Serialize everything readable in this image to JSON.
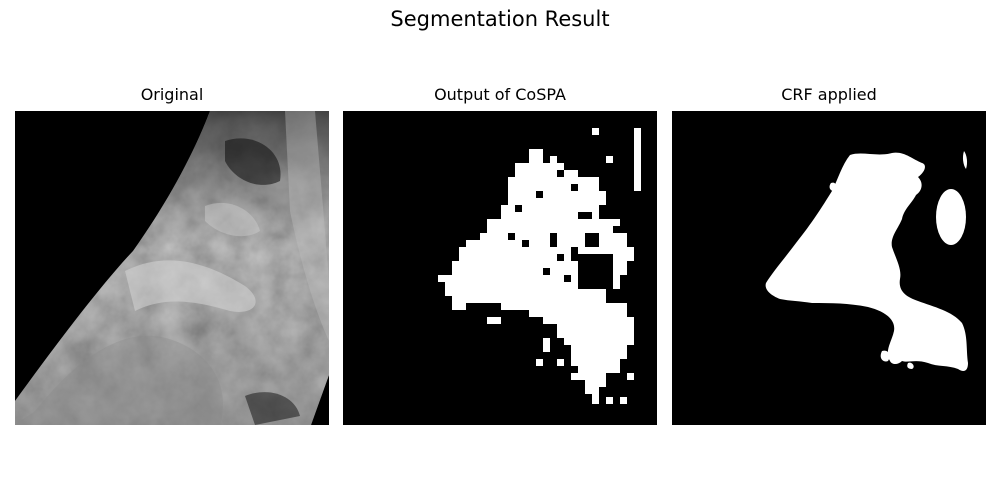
{
  "figure": {
    "title": "Segmentation Result"
  },
  "panels": [
    {
      "title": "Original",
      "image": "grayscale-satellite-cloud-image"
    },
    {
      "title": "Output of CoSPA",
      "image": "blocky-binary-segmentation-mask"
    },
    {
      "title": "CRF applied",
      "image": "smoothed-binary-segmentation-mask"
    }
  ],
  "colors": {
    "background": "#ffffff",
    "mask_foreground": "#ffffff",
    "mask_background": "#000000"
  }
}
